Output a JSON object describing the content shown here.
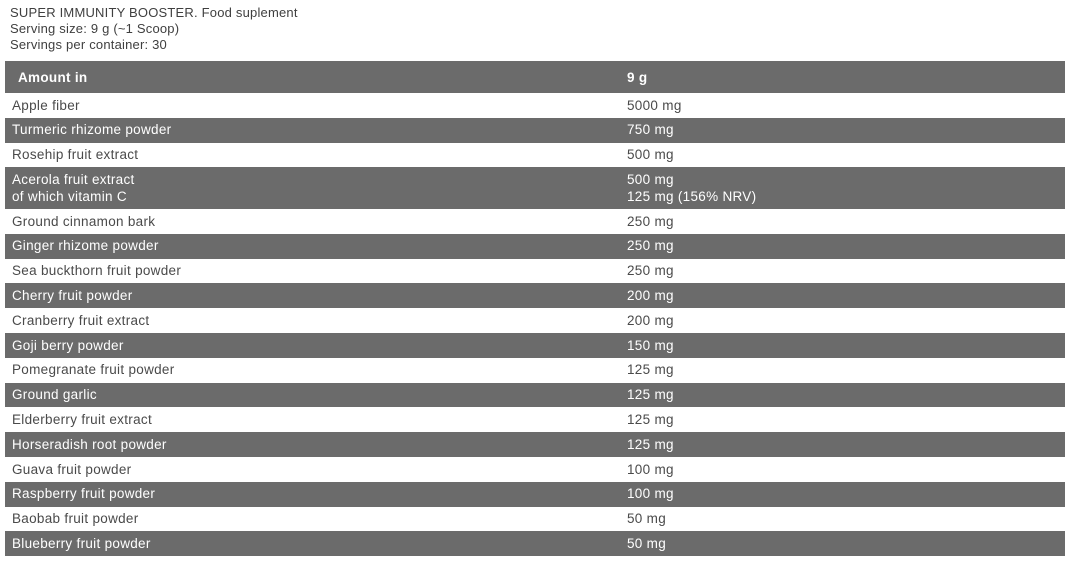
{
  "product": {
    "title": "SUPER IMMUNITY BOOSTER. Food suplement",
    "serving_size": "Serving size: 9 g (~1 Scoop)",
    "servings_per_container": "Servings per container: 30"
  },
  "table": {
    "header": {
      "amount_in_label": "Amount in",
      "serving_label": "9 g"
    },
    "rows": [
      {
        "name_lines": [
          "Apple fiber"
        ],
        "amount_lines": [
          "5000 mg"
        ],
        "shaded": false
      },
      {
        "name_lines": [
          "Turmeric rhizome powder"
        ],
        "amount_lines": [
          "750 mg"
        ],
        "shaded": true
      },
      {
        "name_lines": [
          "Rosehip fruit extract"
        ],
        "amount_lines": [
          "500 mg"
        ],
        "shaded": false
      },
      {
        "name_lines": [
          "Acerola fruit extract",
          "of which vitamin C"
        ],
        "amount_lines": [
          "500 mg",
          "125 mg (156% NRV)"
        ],
        "shaded": true
      },
      {
        "name_lines": [
          "Ground cinnamon bark"
        ],
        "amount_lines": [
          "250 mg"
        ],
        "shaded": false
      },
      {
        "name_lines": [
          "Ginger rhizome powder"
        ],
        "amount_lines": [
          "250 mg"
        ],
        "shaded": true
      },
      {
        "name_lines": [
          "Sea buckthorn fruit powder"
        ],
        "amount_lines": [
          "250 mg"
        ],
        "shaded": false
      },
      {
        "name_lines": [
          "Cherry fruit powder"
        ],
        "amount_lines": [
          "200 mg"
        ],
        "shaded": true
      },
      {
        "name_lines": [
          "Cranberry fruit extract"
        ],
        "amount_lines": [
          "200 mg"
        ],
        "shaded": false
      },
      {
        "name_lines": [
          "Goji berry powder"
        ],
        "amount_lines": [
          "150 mg"
        ],
        "shaded": true
      },
      {
        "name_lines": [
          "Pomegranate fruit powder"
        ],
        "amount_lines": [
          "125 mg"
        ],
        "shaded": false
      },
      {
        "name_lines": [
          "Ground garlic"
        ],
        "amount_lines": [
          "125 mg"
        ],
        "shaded": true
      },
      {
        "name_lines": [
          "Elderberry fruit extract"
        ],
        "amount_lines": [
          "125 mg"
        ],
        "shaded": false
      },
      {
        "name_lines": [
          "Horseradish root powder"
        ],
        "amount_lines": [
          "125 mg"
        ],
        "shaded": true
      },
      {
        "name_lines": [
          "Guava fruit powder"
        ],
        "amount_lines": [
          "100 mg"
        ],
        "shaded": false
      },
      {
        "name_lines": [
          "Raspberry fruit powder"
        ],
        "amount_lines": [
          "100 mg"
        ],
        "shaded": true
      },
      {
        "name_lines": [
          "Baobab fruit powder"
        ],
        "amount_lines": [
          "50 mg"
        ],
        "shaded": false
      },
      {
        "name_lines": [
          "Blueberry fruit powder"
        ],
        "amount_lines": [
          "50 mg"
        ],
        "shaded": true
      }
    ]
  },
  "colors": {
    "shaded_row": "#6b6b6b",
    "text_dark": "#4a4a4a",
    "text_light": "#ffffff"
  }
}
